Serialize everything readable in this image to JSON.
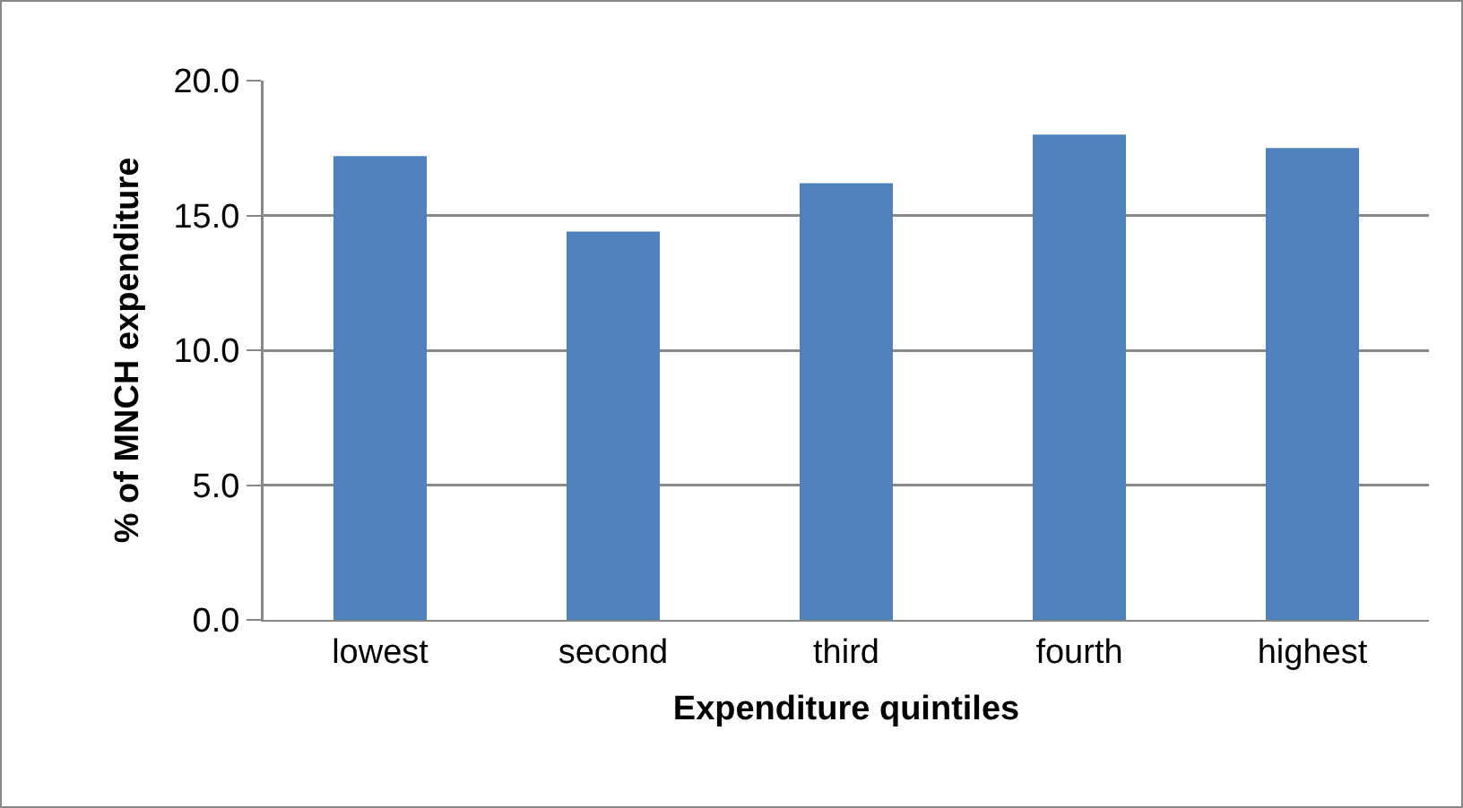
{
  "chart_data": {
    "type": "bar",
    "xlabel": "Expenditure quintiles",
    "ylabel": "% of MNCH expenditure",
    "categories": [
      "lowest",
      "second",
      "third",
      "fourth",
      "highest"
    ],
    "values": [
      17.2,
      14.4,
      16.2,
      18.0,
      17.5
    ],
    "color": "#4f81bd",
    "ylim": [
      0,
      20
    ],
    "yticks": [
      {
        "value": 0,
        "label": "0.0"
      },
      {
        "value": 5,
        "label": "5.0"
      },
      {
        "value": 10,
        "label": "10.0"
      },
      {
        "value": 15,
        "label": "15.0"
      },
      {
        "value": 20,
        "label": "20.0"
      }
    ],
    "grid": "y",
    "legend": false
  }
}
